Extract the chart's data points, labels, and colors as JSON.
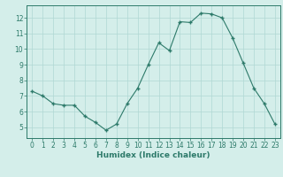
{
  "x": [
    0,
    1,
    2,
    3,
    4,
    5,
    6,
    7,
    8,
    9,
    10,
    11,
    12,
    13,
    14,
    15,
    16,
    17,
    18,
    19,
    20,
    21,
    22,
    23
  ],
  "y": [
    7.3,
    7.0,
    6.5,
    6.4,
    6.4,
    5.7,
    5.3,
    4.8,
    5.2,
    6.5,
    7.5,
    9.0,
    10.4,
    9.9,
    11.75,
    11.7,
    12.3,
    12.25,
    12.0,
    10.7,
    9.1,
    7.5,
    6.5,
    5.2
  ],
  "line_color": "#2d7a6a",
  "marker_color": "#2d7a6a",
  "bg_color": "#d4eeea",
  "grid_color": "#b0d8d4",
  "xlabel": "Humidex (Indice chaleur)",
  "xlim": [
    -0.5,
    23.5
  ],
  "ylim": [
    4.3,
    12.8
  ],
  "yticks": [
    5,
    6,
    7,
    8,
    9,
    10,
    11,
    12
  ],
  "xticks": [
    0,
    1,
    2,
    3,
    4,
    5,
    6,
    7,
    8,
    9,
    10,
    11,
    12,
    13,
    14,
    15,
    16,
    17,
    18,
    19,
    20,
    21,
    22,
    23
  ],
  "tick_color": "#2d7a6a",
  "label_fontsize": 6.5,
  "tick_fontsize": 5.5
}
